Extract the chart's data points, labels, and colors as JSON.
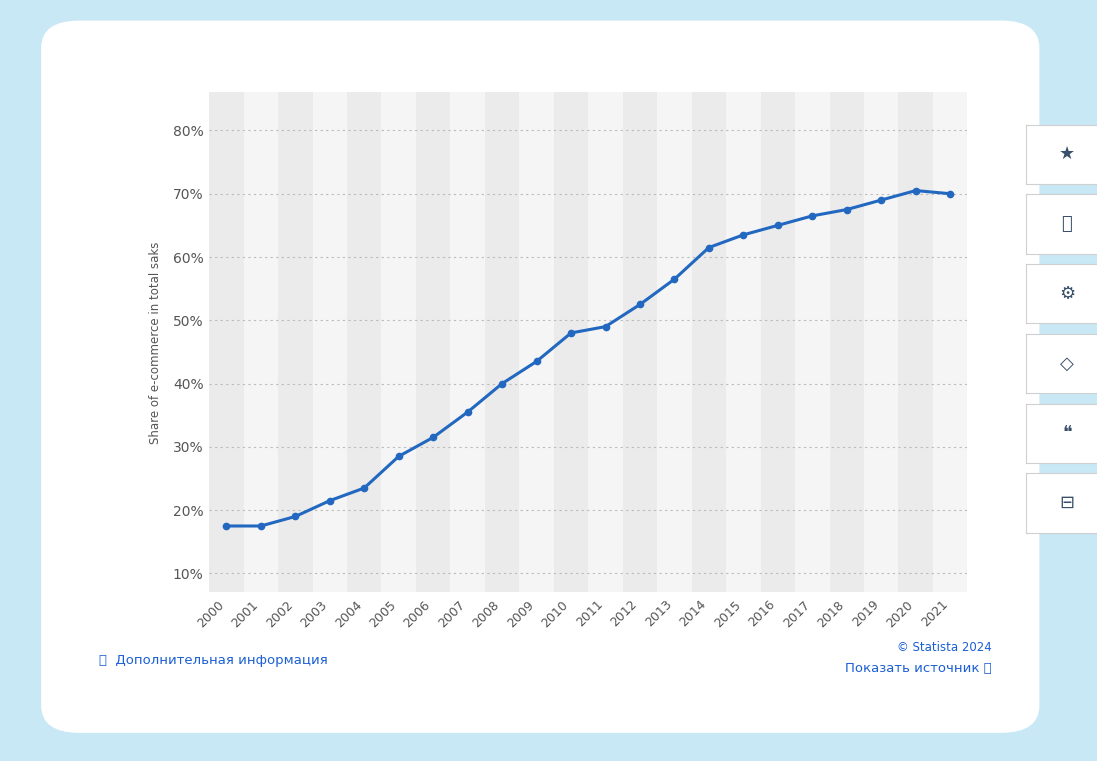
{
  "years": [
    2000,
    2001,
    2002,
    2003,
    2004,
    2005,
    2006,
    2007,
    2008,
    2009,
    2010,
    2011,
    2012,
    2013,
    2014,
    2015,
    2016,
    2017,
    2018,
    2019,
    2020,
    2021
  ],
  "values": [
    17.5,
    17.5,
    19.0,
    21.5,
    23.5,
    28.5,
    31.5,
    35.5,
    40.0,
    43.5,
    48.0,
    49.0,
    52.5,
    56.5,
    61.5,
    63.5,
    65.0,
    66.5,
    67.5,
    69.0,
    70.5,
    70.0
  ],
  "line_color": "#2268c0",
  "line_width": 2.2,
  "marker": "o",
  "marker_size": 4.5,
  "yticks": [
    10,
    20,
    30,
    40,
    50,
    60,
    70,
    80
  ],
  "ytick_labels": [
    "10%",
    "20%",
    "30%",
    "40%",
    "50%",
    "60%",
    "70%",
    "80%"
  ],
  "ylim": [
    7,
    86
  ],
  "ylabel": "Share of e-commerce in total saks",
  "grid_color": "#bbbbbb",
  "bg_outer": "#c8e8f5",
  "bg_card": "#ffffff",
  "bg_stripe_light": "#f5f5f5",
  "bg_stripe_dark": "#ebebeb",
  "footer_left": "ⓘ  Дополнительная информация",
  "footer_right1": "© Statista 2024",
  "footer_right2": "Показать источник ⓘ",
  "footer_color": "#1a5fd4",
  "tick_color": "#555555",
  "icon_symbols": [
    "★",
    "🔔",
    "⚙",
    "⭡",
    "““",
    "🖨"
  ],
  "icon_color": "#3a4f6a",
  "icon_bg": "#ffffff",
  "icon_border": "#d0d0d0"
}
